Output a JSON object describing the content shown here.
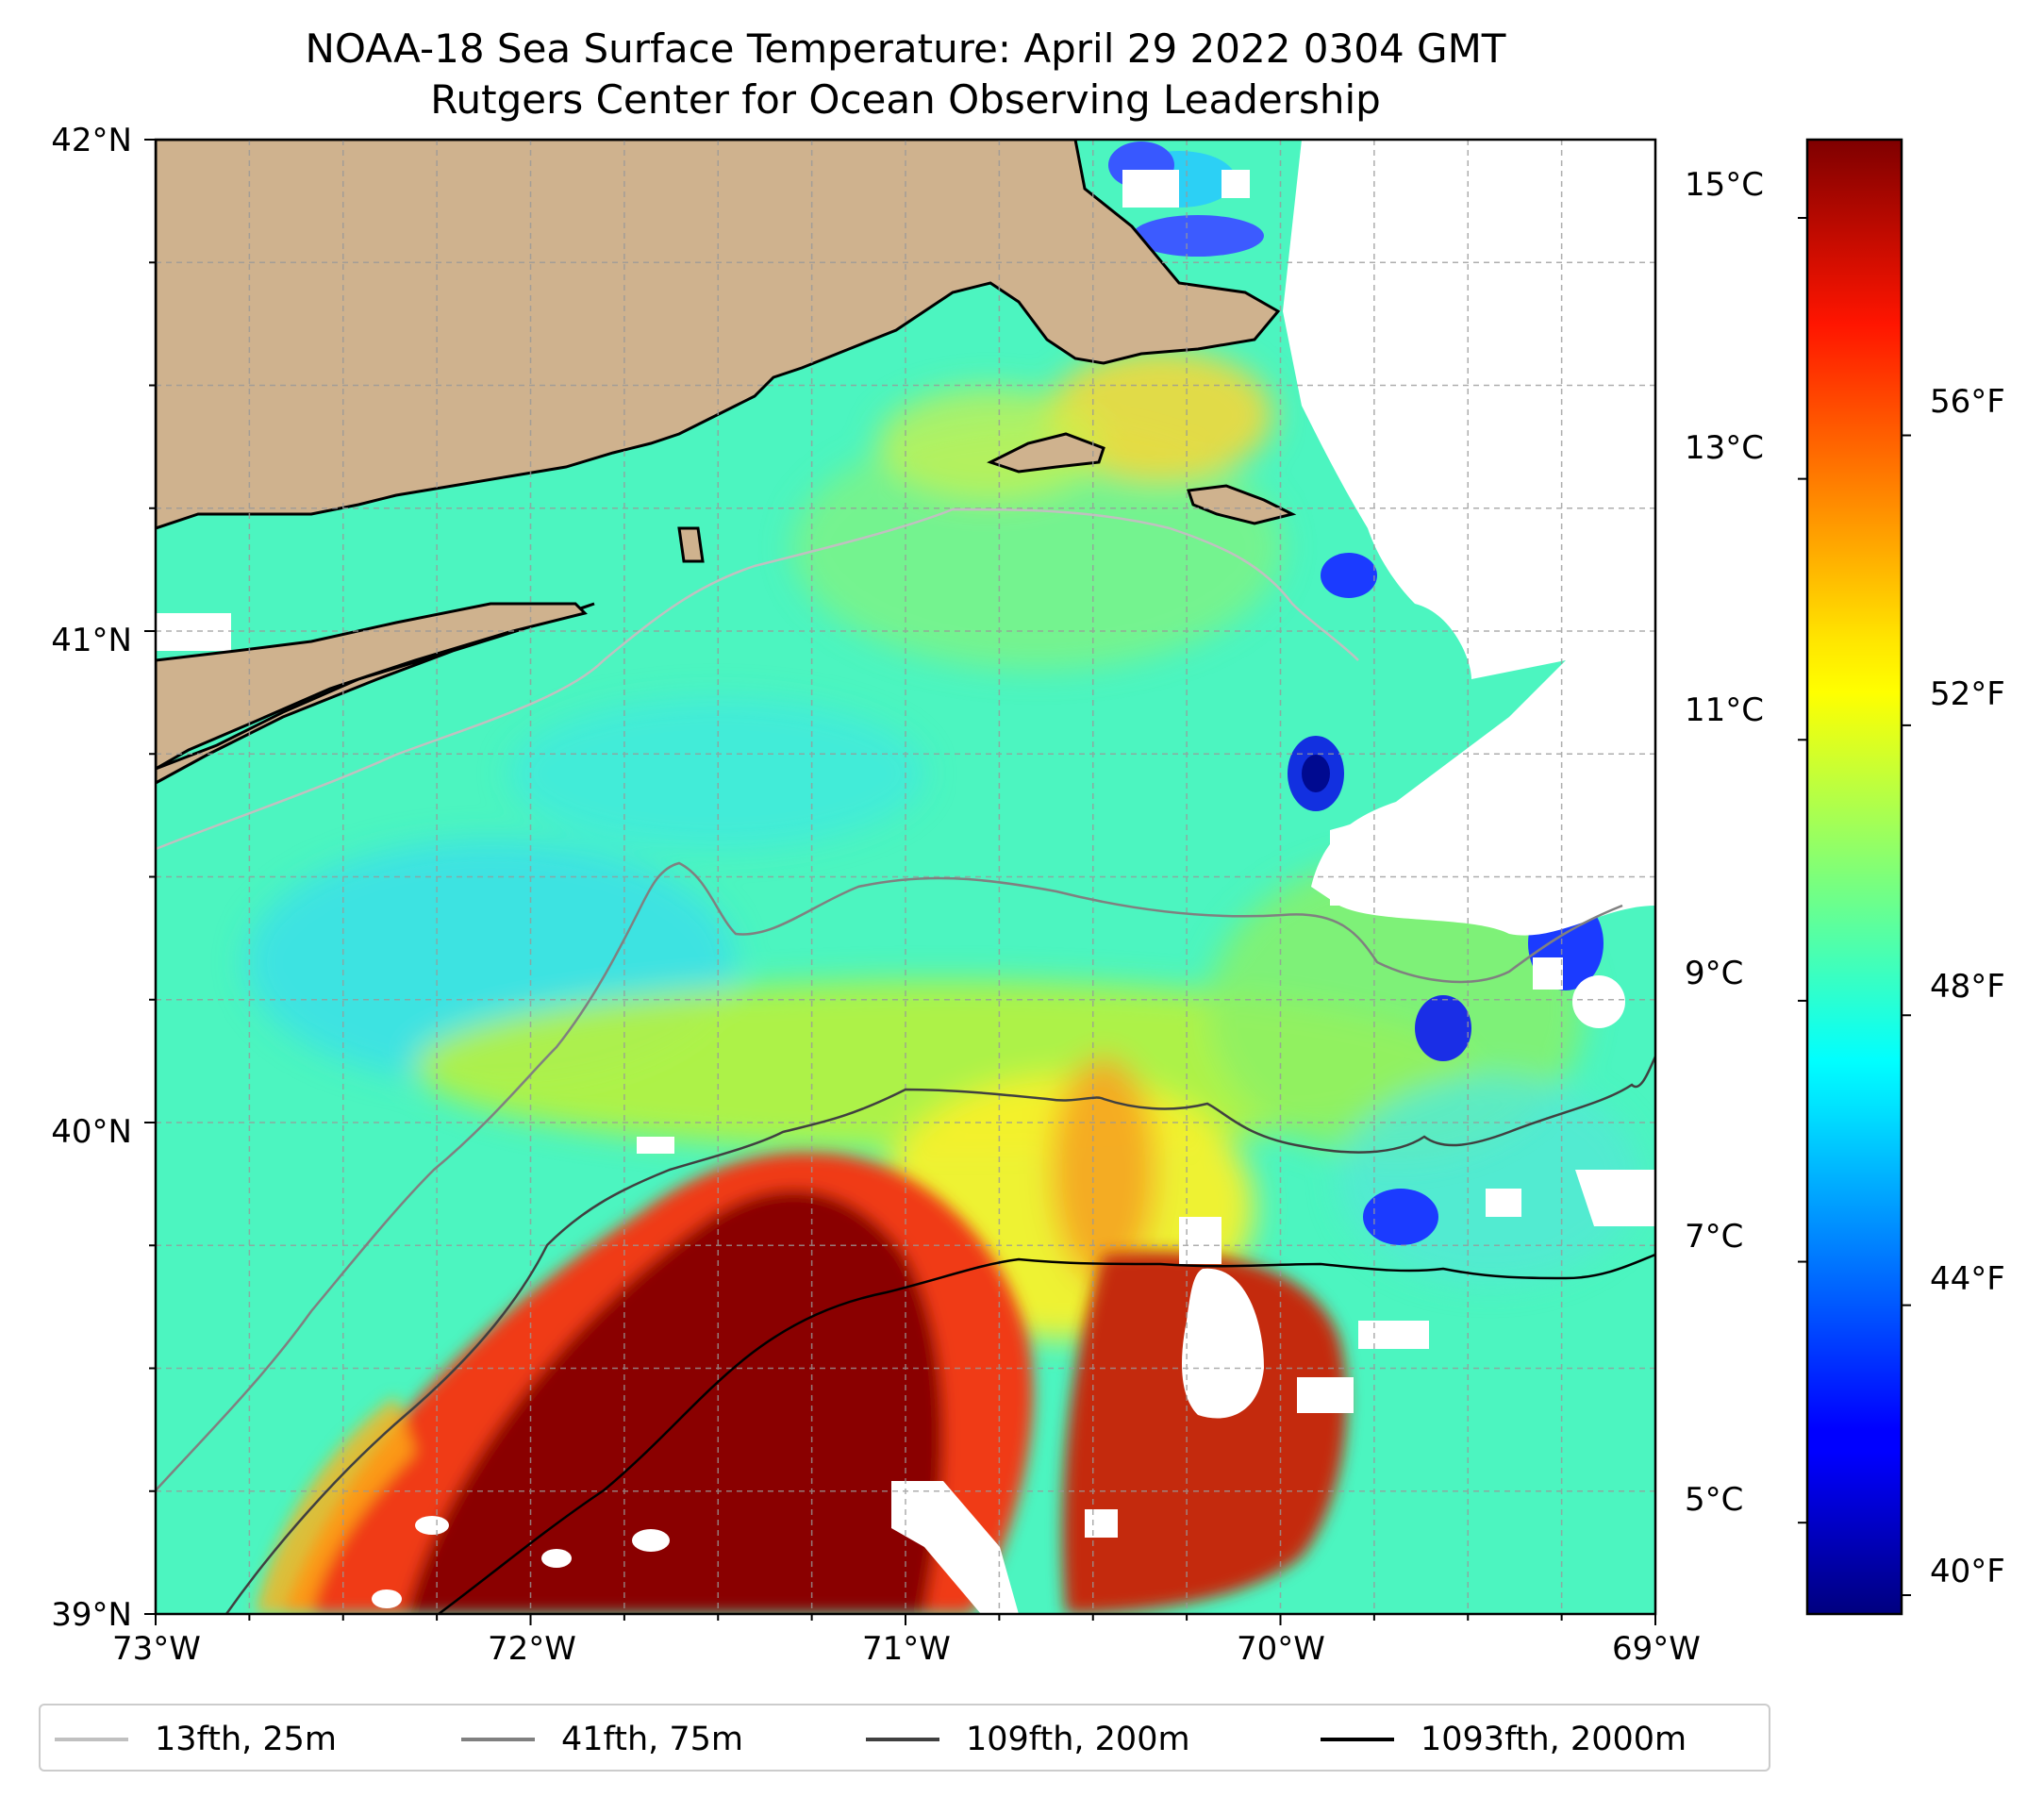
{
  "title": {
    "line1": "NOAA-18 Sea Surface Temperature: April 29 2022 0304 GMT",
    "line2": "Rutgers Center for Ocean Observing Leadership"
  },
  "map": {
    "lat_range": [
      39,
      42
    ],
    "lon_range": [
      -73,
      -69
    ],
    "lat_tick_labels": [
      "42°N",
      "41°N",
      "40°N",
      "39°N"
    ],
    "lon_tick_labels": [
      "73°W",
      "72°W",
      "71°W",
      "70°W",
      "69°W"
    ],
    "land_color": "#cfb28e",
    "gridlines": "on"
  },
  "colorbar": {
    "colormap": "jet",
    "range_c": [
      4.3,
      15.6
    ],
    "celsius_labels": [
      "15°C",
      "13°C",
      "11°C",
      "9°C",
      "7°C",
      "5°C"
    ],
    "fahrenheit_labels": [
      "56°F",
      "52°F",
      "48°F",
      "44°F",
      "40°F"
    ]
  },
  "legend": {
    "items": [
      {
        "label": "13fth, 25m",
        "color": "#c0c0c0"
      },
      {
        "label": "41fth, 75m",
        "color": "#808080"
      },
      {
        "label": "109fth, 200m",
        "color": "#404040"
      },
      {
        "label": "1093fth, 2000m",
        "color": "#000000"
      }
    ]
  }
}
